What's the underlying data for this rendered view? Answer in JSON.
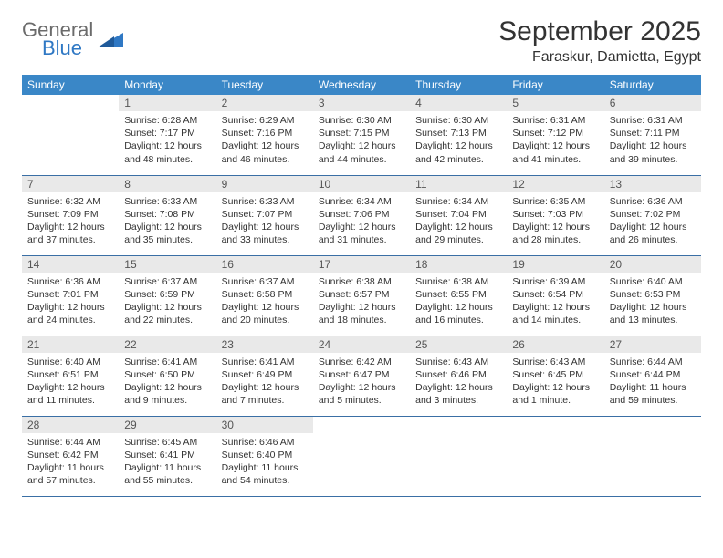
{
  "brand": {
    "word1": "General",
    "word2": "Blue"
  },
  "title": "September 2025",
  "location": "Faraskur, Damietta, Egypt",
  "colors": {
    "header_bg": "#3a87c7",
    "header_text": "#ffffff",
    "row_border": "#3a6fa5",
    "daynum_bg": "#e9e9e9",
    "daynum_text": "#555555",
    "body_text": "#333333",
    "logo_gray": "#6b6b6b",
    "logo_blue": "#2f78c4",
    "page_bg": "#ffffff"
  },
  "typography": {
    "title_fontsize": 30,
    "location_fontsize": 16,
    "weekday_fontsize": 12,
    "daynum_fontsize": 12,
    "body_fontsize": 10.5
  },
  "weekdays": [
    "Sunday",
    "Monday",
    "Tuesday",
    "Wednesday",
    "Thursday",
    "Friday",
    "Saturday"
  ],
  "weeks": [
    [
      null,
      {
        "n": "1",
        "sr": "Sunrise: 6:28 AM",
        "ss": "Sunset: 7:17 PM",
        "d1": "Daylight: 12 hours",
        "d2": "and 48 minutes."
      },
      {
        "n": "2",
        "sr": "Sunrise: 6:29 AM",
        "ss": "Sunset: 7:16 PM",
        "d1": "Daylight: 12 hours",
        "d2": "and 46 minutes."
      },
      {
        "n": "3",
        "sr": "Sunrise: 6:30 AM",
        "ss": "Sunset: 7:15 PM",
        "d1": "Daylight: 12 hours",
        "d2": "and 44 minutes."
      },
      {
        "n": "4",
        "sr": "Sunrise: 6:30 AM",
        "ss": "Sunset: 7:13 PM",
        "d1": "Daylight: 12 hours",
        "d2": "and 42 minutes."
      },
      {
        "n": "5",
        "sr": "Sunrise: 6:31 AM",
        "ss": "Sunset: 7:12 PM",
        "d1": "Daylight: 12 hours",
        "d2": "and 41 minutes."
      },
      {
        "n": "6",
        "sr": "Sunrise: 6:31 AM",
        "ss": "Sunset: 7:11 PM",
        "d1": "Daylight: 12 hours",
        "d2": "and 39 minutes."
      }
    ],
    [
      {
        "n": "7",
        "sr": "Sunrise: 6:32 AM",
        "ss": "Sunset: 7:09 PM",
        "d1": "Daylight: 12 hours",
        "d2": "and 37 minutes."
      },
      {
        "n": "8",
        "sr": "Sunrise: 6:33 AM",
        "ss": "Sunset: 7:08 PM",
        "d1": "Daylight: 12 hours",
        "d2": "and 35 minutes."
      },
      {
        "n": "9",
        "sr": "Sunrise: 6:33 AM",
        "ss": "Sunset: 7:07 PM",
        "d1": "Daylight: 12 hours",
        "d2": "and 33 minutes."
      },
      {
        "n": "10",
        "sr": "Sunrise: 6:34 AM",
        "ss": "Sunset: 7:06 PM",
        "d1": "Daylight: 12 hours",
        "d2": "and 31 minutes."
      },
      {
        "n": "11",
        "sr": "Sunrise: 6:34 AM",
        "ss": "Sunset: 7:04 PM",
        "d1": "Daylight: 12 hours",
        "d2": "and 29 minutes."
      },
      {
        "n": "12",
        "sr": "Sunrise: 6:35 AM",
        "ss": "Sunset: 7:03 PM",
        "d1": "Daylight: 12 hours",
        "d2": "and 28 minutes."
      },
      {
        "n": "13",
        "sr": "Sunrise: 6:36 AM",
        "ss": "Sunset: 7:02 PM",
        "d1": "Daylight: 12 hours",
        "d2": "and 26 minutes."
      }
    ],
    [
      {
        "n": "14",
        "sr": "Sunrise: 6:36 AM",
        "ss": "Sunset: 7:01 PM",
        "d1": "Daylight: 12 hours",
        "d2": "and 24 minutes."
      },
      {
        "n": "15",
        "sr": "Sunrise: 6:37 AM",
        "ss": "Sunset: 6:59 PM",
        "d1": "Daylight: 12 hours",
        "d2": "and 22 minutes."
      },
      {
        "n": "16",
        "sr": "Sunrise: 6:37 AM",
        "ss": "Sunset: 6:58 PM",
        "d1": "Daylight: 12 hours",
        "d2": "and 20 minutes."
      },
      {
        "n": "17",
        "sr": "Sunrise: 6:38 AM",
        "ss": "Sunset: 6:57 PM",
        "d1": "Daylight: 12 hours",
        "d2": "and 18 minutes."
      },
      {
        "n": "18",
        "sr": "Sunrise: 6:38 AM",
        "ss": "Sunset: 6:55 PM",
        "d1": "Daylight: 12 hours",
        "d2": "and 16 minutes."
      },
      {
        "n": "19",
        "sr": "Sunrise: 6:39 AM",
        "ss": "Sunset: 6:54 PM",
        "d1": "Daylight: 12 hours",
        "d2": "and 14 minutes."
      },
      {
        "n": "20",
        "sr": "Sunrise: 6:40 AM",
        "ss": "Sunset: 6:53 PM",
        "d1": "Daylight: 12 hours",
        "d2": "and 13 minutes."
      }
    ],
    [
      {
        "n": "21",
        "sr": "Sunrise: 6:40 AM",
        "ss": "Sunset: 6:51 PM",
        "d1": "Daylight: 12 hours",
        "d2": "and 11 minutes."
      },
      {
        "n": "22",
        "sr": "Sunrise: 6:41 AM",
        "ss": "Sunset: 6:50 PM",
        "d1": "Daylight: 12 hours",
        "d2": "and 9 minutes."
      },
      {
        "n": "23",
        "sr": "Sunrise: 6:41 AM",
        "ss": "Sunset: 6:49 PM",
        "d1": "Daylight: 12 hours",
        "d2": "and 7 minutes."
      },
      {
        "n": "24",
        "sr": "Sunrise: 6:42 AM",
        "ss": "Sunset: 6:47 PM",
        "d1": "Daylight: 12 hours",
        "d2": "and 5 minutes."
      },
      {
        "n": "25",
        "sr": "Sunrise: 6:43 AM",
        "ss": "Sunset: 6:46 PM",
        "d1": "Daylight: 12 hours",
        "d2": "and 3 minutes."
      },
      {
        "n": "26",
        "sr": "Sunrise: 6:43 AM",
        "ss": "Sunset: 6:45 PM",
        "d1": "Daylight: 12 hours",
        "d2": "and 1 minute."
      },
      {
        "n": "27",
        "sr": "Sunrise: 6:44 AM",
        "ss": "Sunset: 6:44 PM",
        "d1": "Daylight: 11 hours",
        "d2": "and 59 minutes."
      }
    ],
    [
      {
        "n": "28",
        "sr": "Sunrise: 6:44 AM",
        "ss": "Sunset: 6:42 PM",
        "d1": "Daylight: 11 hours",
        "d2": "and 57 minutes."
      },
      {
        "n": "29",
        "sr": "Sunrise: 6:45 AM",
        "ss": "Sunset: 6:41 PM",
        "d1": "Daylight: 11 hours",
        "d2": "and 55 minutes."
      },
      {
        "n": "30",
        "sr": "Sunrise: 6:46 AM",
        "ss": "Sunset: 6:40 PM",
        "d1": "Daylight: 11 hours",
        "d2": "and 54 minutes."
      },
      null,
      null,
      null,
      null
    ]
  ]
}
